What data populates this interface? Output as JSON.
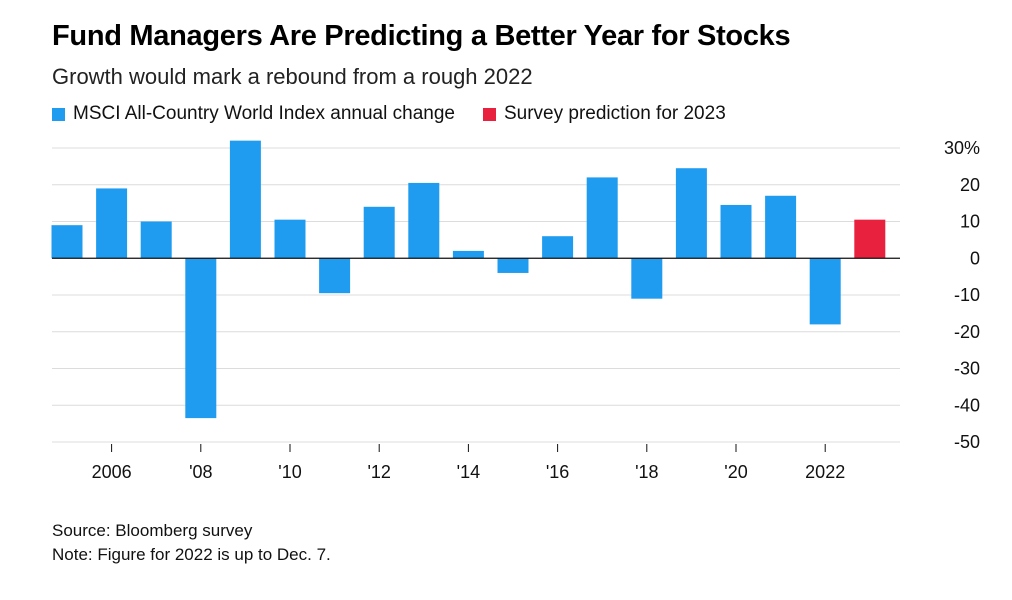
{
  "header": {
    "title": "Fund Managers Are Predicting a Better Year for Stocks",
    "subtitle": "Growth would mark a rebound from a rough 2022"
  },
  "legend": [
    {
      "label": "MSCI All-Country World Index annual change",
      "color": "#1f9cf0"
    },
    {
      "label": "Survey prediction for 2023",
      "color": "#e8213f"
    }
  ],
  "footer": {
    "source": "Source: Bloomberg survey",
    "note": "Note: Figure for 2022 is up to Dec. 7."
  },
  "chart_data": {
    "type": "bar",
    "title": "Fund Managers Are Predicting a Better Year for Stocks",
    "subtitle": "Growth would mark a rebound from a rough 2022",
    "xlabel": "",
    "ylabel": "",
    "ylim": [
      -50,
      30
    ],
    "yticks": [
      30,
      20,
      10,
      0,
      -10,
      -20,
      -30,
      -40,
      -50
    ],
    "ytick_labels": [
      "30%",
      "20",
      "10",
      "0",
      "-10",
      "-20",
      "-30",
      "-40",
      "-50"
    ],
    "grid": true,
    "legend_position": "top-left",
    "categories": [
      "2005",
      "2006",
      "2007",
      "2008",
      "2009",
      "2010",
      "2011",
      "2012",
      "2013",
      "2014",
      "2015",
      "2016",
      "2017",
      "2018",
      "2019",
      "2020",
      "2021",
      "2022",
      "2023"
    ],
    "xtick_labels": [
      {
        "year": "2006",
        "label": "2006"
      },
      {
        "year": "2008",
        "label": "'08"
      },
      {
        "year": "2010",
        "label": "'10"
      },
      {
        "year": "2012",
        "label": "'12"
      },
      {
        "year": "2014",
        "label": "'14"
      },
      {
        "year": "2016",
        "label": "'16"
      },
      {
        "year": "2018",
        "label": "'18"
      },
      {
        "year": "2020",
        "label": "'20"
      },
      {
        "year": "2022",
        "label": "2022"
      }
    ],
    "series": [
      {
        "name": "MSCI All-Country World Index annual change",
        "color": "#1f9cf0",
        "values": [
          9,
          19,
          10,
          -43.5,
          32,
          10.5,
          -9.5,
          14,
          20.5,
          2,
          -4,
          6,
          22,
          -11,
          24.5,
          14.5,
          17,
          -18,
          null
        ]
      },
      {
        "name": "Survey prediction for 2023",
        "color": "#e8213f",
        "values": [
          null,
          null,
          null,
          null,
          null,
          null,
          null,
          null,
          null,
          null,
          null,
          null,
          null,
          null,
          null,
          null,
          null,
          null,
          10.5
        ]
      }
    ]
  }
}
